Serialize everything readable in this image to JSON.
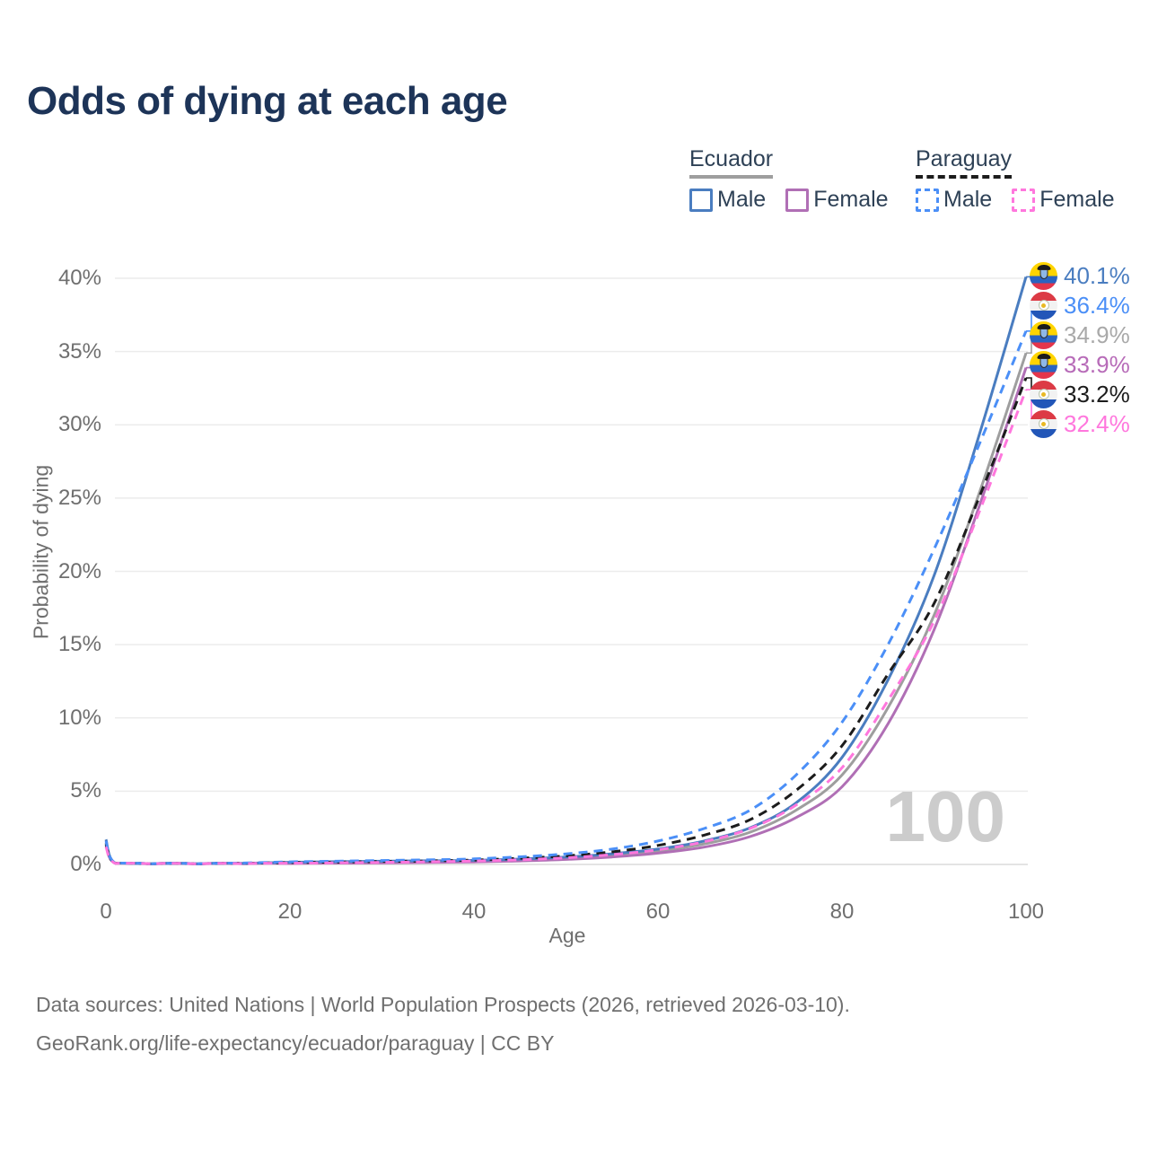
{
  "title": "Odds of dying at each age",
  "legend": {
    "groups": [
      {
        "country": "Ecuador",
        "line_style": "solid",
        "underline_color": "#9e9e9e",
        "items": [
          {
            "label": "Male",
            "color": "#4a7dc0",
            "style": "solid"
          },
          {
            "label": "Female",
            "color": "#b06fb5",
            "style": "solid"
          }
        ]
      },
      {
        "country": "Paraguay",
        "line_style": "dashed",
        "underline_color": "#1c1c1c",
        "items": [
          {
            "label": "Male",
            "color": "#4b8ff7",
            "style": "dashed"
          },
          {
            "label": "Female",
            "color": "#ff77dd",
            "style": "dashed"
          }
        ]
      }
    ]
  },
  "axes": {
    "y_title": "Probability of dying",
    "x_title": "Age",
    "y_ticks": [
      "0%",
      "5%",
      "10%",
      "15%",
      "20%",
      "25%",
      "30%",
      "35%",
      "40%"
    ],
    "x_ticks": [
      0,
      20,
      40,
      60,
      80,
      100
    ]
  },
  "watermark": "100",
  "chart_data": {
    "type": "line",
    "title": "Odds of dying at each age",
    "xlabel": "Age",
    "ylabel": "Probability of dying",
    "unit": "%",
    "xlim": [
      0,
      100
    ],
    "ylim": [
      0,
      40
    ],
    "grid": true,
    "legend_position": "top-right",
    "x": [
      0,
      1,
      5,
      10,
      15,
      20,
      25,
      30,
      35,
      40,
      45,
      50,
      55,
      60,
      65,
      70,
      75,
      80,
      85,
      90,
      95,
      100
    ],
    "series": [
      {
        "name": "Ecuador Male",
        "country": "Ecuador",
        "sex": "Male",
        "color": "#4a7dc0",
        "dash": false,
        "flag": "ec",
        "end_label": "40.1%",
        "end_label_color": "#4a7dc0",
        "values": [
          1.7,
          0.1,
          0.04,
          0.04,
          0.08,
          0.15,
          0.19,
          0.22,
          0.25,
          0.28,
          0.37,
          0.5,
          0.73,
          1.05,
          1.6,
          2.5,
          4.2,
          7.3,
          12.6,
          19.7,
          29.5,
          40.1
        ]
      },
      {
        "name": "Paraguay Male",
        "country": "Paraguay",
        "sex": "Male",
        "color": "#4b8ff7",
        "dash": true,
        "flag": "py",
        "end_label": "36.4%",
        "end_label_color": "#4b8ff7",
        "values": [
          1.6,
          0.1,
          0.05,
          0.05,
          0.1,
          0.18,
          0.22,
          0.27,
          0.31,
          0.38,
          0.52,
          0.72,
          1.05,
          1.6,
          2.45,
          3.7,
          6.1,
          9.7,
          15.0,
          21.5,
          28.8,
          36.4
        ]
      },
      {
        "name": "Ecuador",
        "country": "Ecuador",
        "sex": "Both",
        "color": "#9e9e9e",
        "dash": false,
        "flag": "ec",
        "end_label": "34.9%",
        "end_label_color": "#a9a9a9",
        "values": [
          1.5,
          0.09,
          0.04,
          0.03,
          0.06,
          0.11,
          0.14,
          0.17,
          0.19,
          0.22,
          0.3,
          0.42,
          0.62,
          0.92,
          1.4,
          2.2,
          3.7,
          6.1,
          10.7,
          17.0,
          25.5,
          34.9
        ]
      },
      {
        "name": "Ecuador Female",
        "country": "Ecuador",
        "sex": "Female",
        "color": "#b06fb5",
        "dash": false,
        "flag": "ec",
        "end_label": "33.9%",
        "end_label_color": "#b76bb8",
        "values": [
          1.3,
          0.08,
          0.03,
          0.03,
          0.05,
          0.07,
          0.09,
          0.11,
          0.14,
          0.17,
          0.24,
          0.34,
          0.51,
          0.77,
          1.18,
          1.9,
          3.2,
          5.3,
          9.6,
          16.0,
          24.6,
          33.9
        ]
      },
      {
        "name": "Paraguay",
        "country": "Paraguay",
        "sex": "Both",
        "color": "#1c1c1c",
        "dash": true,
        "flag": "py",
        "end_label": "33.2%",
        "end_label_color": "#1c1c1c",
        "values": [
          1.4,
          0.09,
          0.04,
          0.04,
          0.08,
          0.13,
          0.16,
          0.2,
          0.24,
          0.3,
          0.42,
          0.58,
          0.86,
          1.3,
          2.0,
          3.05,
          5.05,
          8.1,
          13.0,
          17.8,
          25.2,
          33.2
        ]
      },
      {
        "name": "Paraguay Female",
        "country": "Paraguay",
        "sex": "Female",
        "color": "#ff77dd",
        "dash": true,
        "flag": "py",
        "end_label": "32.4%",
        "end_label_color": "#ff77dd",
        "values": [
          1.2,
          0.08,
          0.04,
          0.03,
          0.05,
          0.08,
          0.11,
          0.14,
          0.18,
          0.23,
          0.32,
          0.45,
          0.67,
          1.0,
          1.55,
          2.45,
          4.05,
          6.6,
          11.2,
          16.6,
          24.2,
          32.4
        ]
      }
    ]
  },
  "footer": {
    "line1": "Data sources: United Nations | World Population Prospects (2026, retrieved 2026-03-10).",
    "line2": "GeoRank.org/life-expectancy/ecuador/paraguay | CC BY"
  }
}
